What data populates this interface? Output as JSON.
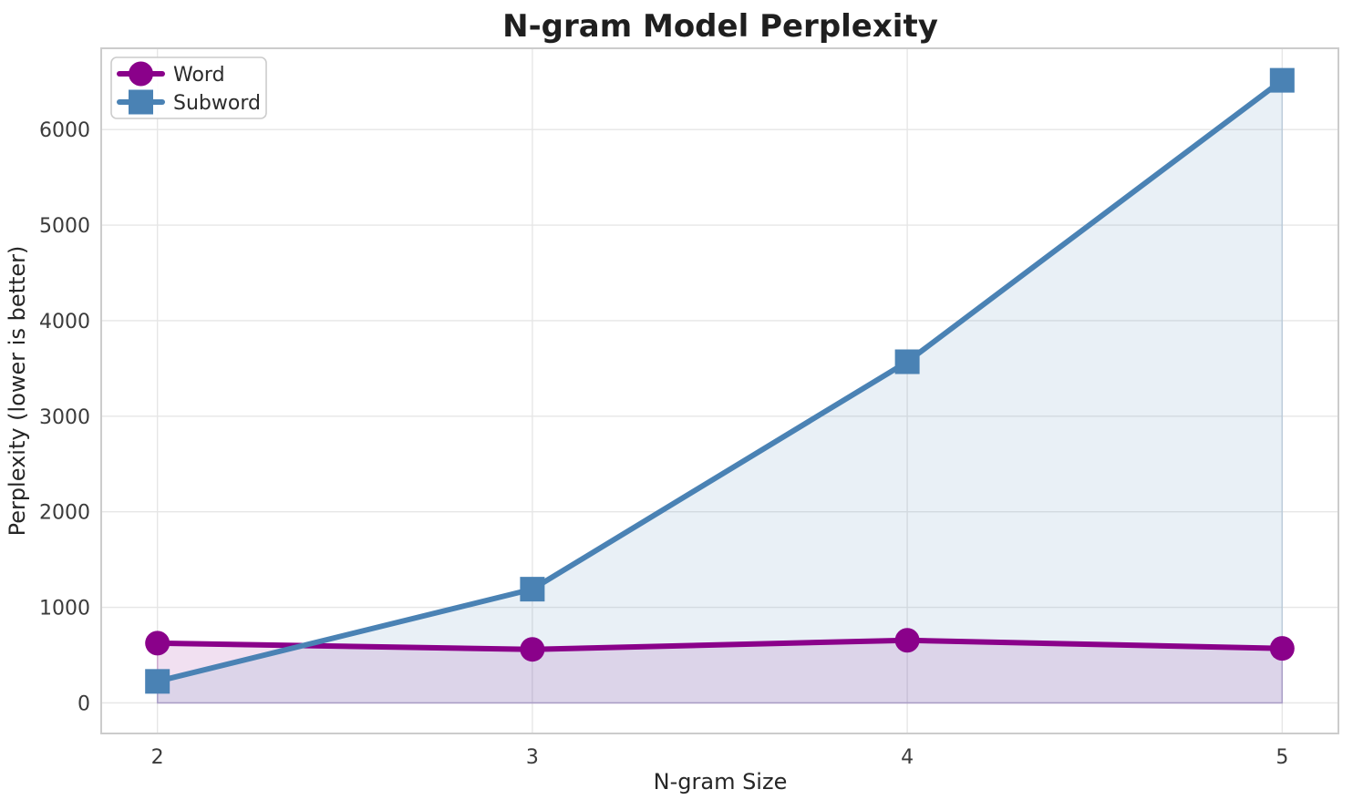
{
  "chart_data": {
    "type": "line",
    "title": "N-gram Model Perplexity",
    "xlabel": "N-gram Size",
    "ylabel": "Perplexity (lower is better)",
    "x": [
      2,
      3,
      4,
      5
    ],
    "series": [
      {
        "name": "Word",
        "values": [
          625,
          560,
          655,
          570
        ],
        "color": "#8A018A",
        "marker": "circle",
        "fill_to_zero": true,
        "fill_alpha": 0.12
      },
      {
        "name": "Subword",
        "values": [
          225,
          1190,
          3570,
          6515
        ],
        "color": "#4A82B4",
        "marker": "square",
        "fill_to_zero": true,
        "fill_alpha": 0.12
      }
    ],
    "xticks": [
      2,
      3,
      4,
      5
    ],
    "yticks": [
      0,
      1000,
      2000,
      3000,
      4000,
      5000,
      6000
    ],
    "xlim": [
      1.85,
      5.15
    ],
    "ylim": [
      -320,
      6850
    ],
    "grid": true,
    "legend": {
      "position": "upper-left",
      "entries": [
        "Word",
        "Subword"
      ]
    }
  },
  "style": {
    "background": "#ffffff",
    "grid_color": "#e6e6e6",
    "spine_color": "#cccccc",
    "title_color": "#1f1f1f",
    "text_color": "#262626",
    "tick_color": "#3b3b3b"
  }
}
